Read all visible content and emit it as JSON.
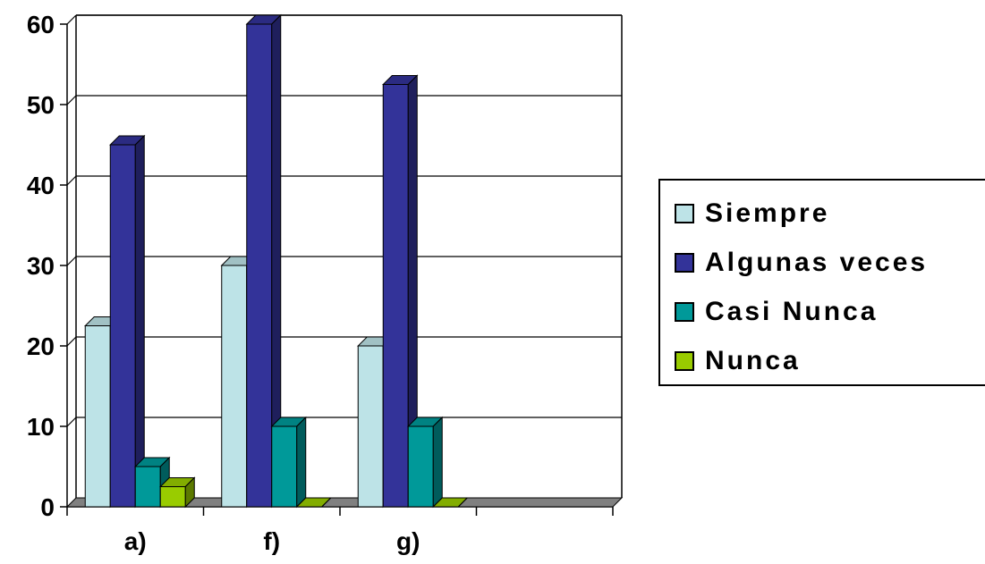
{
  "chart_data": {
    "type": "bar",
    "categories": [
      "a)",
      "f)",
      "g)",
      ""
    ],
    "series": [
      {
        "name": "Siempre",
        "values": [
          22.5,
          30,
          20,
          0
        ],
        "color": "#bde3e7"
      },
      {
        "name": "Algunas veces",
        "values": [
          45,
          60,
          52.5,
          0
        ],
        "color": "#333399"
      },
      {
        "name": "Casi Nunca",
        "values": [
          5,
          10,
          10,
          0
        ],
        "color": "#009999"
      },
      {
        "name": "Nunca",
        "values": [
          2.5,
          0,
          0,
          0
        ],
        "color": "#99cc00"
      }
    ],
    "ylim": [
      0,
      60
    ],
    "yticks": [
      "0",
      "10",
      "20",
      "30",
      "40",
      "50",
      "60"
    ],
    "grid": true,
    "legend_position": "right",
    "style": "3d-clustered-column"
  }
}
